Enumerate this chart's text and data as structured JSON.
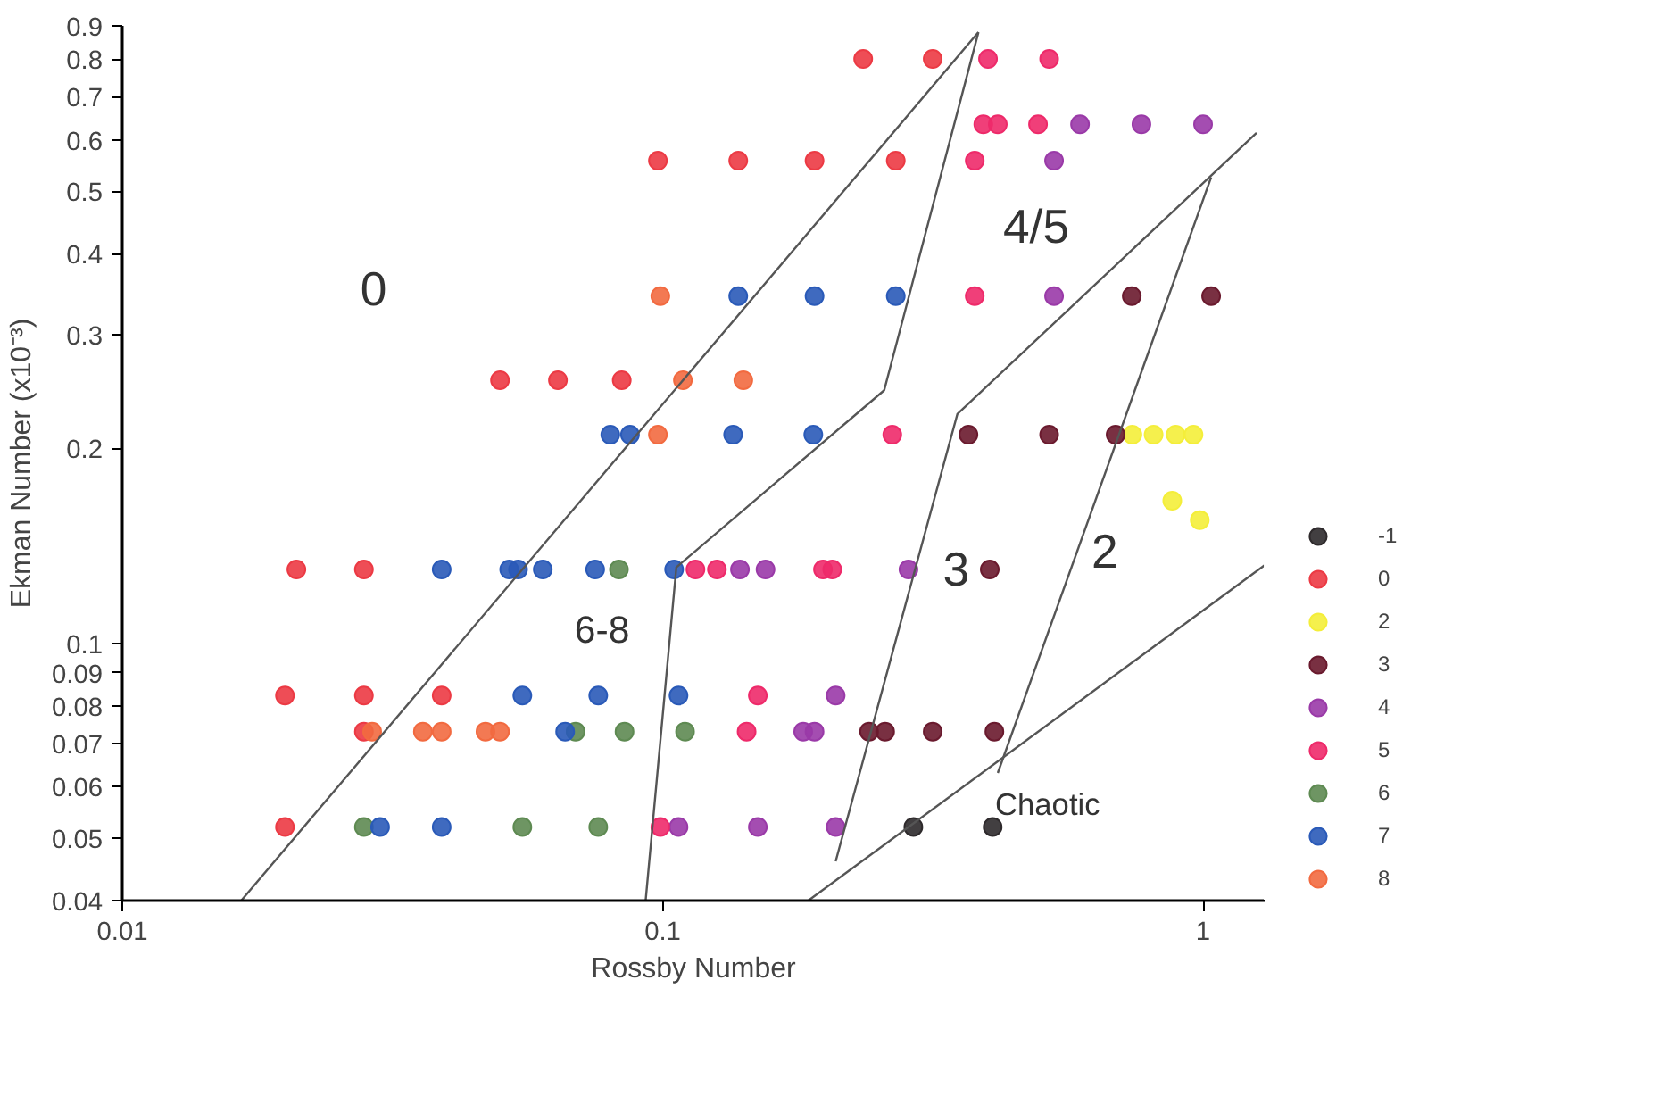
{
  "chart_data": {
    "type": "scatter",
    "xlabel": "Rossby Number",
    "ylabel": "Ekman Number (x10⁻³)",
    "log": "xy",
    "marker": "circle",
    "grid": false,
    "legend": "bottom right",
    "xlim": [
      0.01,
      1.3
    ],
    "xticks": [
      0.01,
      0.1,
      1
    ],
    "ylim": [
      0.04,
      0.9
    ],
    "yticks": [
      0.04,
      0.05,
      0.06,
      0.07,
      0.08,
      0.09,
      0.1,
      0.2,
      0.3,
      0.4,
      0.5,
      0.6,
      0.7,
      0.8,
      0.9
    ],
    "series": [
      {
        "name": "-1",
        "color": "#2e2a2c",
        "x": [
          0.291,
          0.408
        ],
        "values": [
          0.052,
          0.052
        ]
      },
      {
        "name": "0",
        "color": "#ec3a44",
        "x": [
          0.235,
          0.316,
          0.098,
          0.138,
          0.191,
          0.27,
          0.05,
          0.064,
          0.084,
          0.021,
          0.028,
          0.02,
          0.028,
          0.039,
          0.028,
          0.02
        ],
        "values": [
          0.8,
          0.8,
          0.557,
          0.557,
          0.557,
          0.557,
          0.255,
          0.255,
          0.255,
          0.13,
          0.13,
          0.083,
          0.083,
          0.083,
          0.073,
          0.052
        ]
      },
      {
        "name": "2",
        "color": "#f4ee3a",
        "x": [
          0.74,
          0.81,
          0.89,
          0.96,
          0.877,
          0.986
        ],
        "values": [
          0.21,
          0.21,
          0.21,
          0.21,
          0.166,
          0.155
        ]
      },
      {
        "name": "3",
        "color": "#6a1a2e",
        "x": [
          0.738,
          1.035,
          0.368,
          0.519,
          0.689,
          0.403,
          0.241,
          0.258,
          0.316,
          0.411
        ],
        "values": [
          0.344,
          0.344,
          0.21,
          0.21,
          0.21,
          0.13,
          0.073,
          0.073,
          0.073,
          0.073
        ]
      },
      {
        "name": "4",
        "color": "#9a3aa8",
        "x": [
          0.592,
          0.769,
          1.0,
          0.53,
          0.53,
          0.139,
          0.155,
          0.285,
          0.209,
          0.182,
          0.191,
          0.107,
          0.15,
          0.209
        ],
        "values": [
          0.634,
          0.634,
          0.634,
          0.557,
          0.344,
          0.13,
          0.13,
          0.13,
          0.083,
          0.073,
          0.073,
          0.052,
          0.052,
          0.052
        ]
      },
      {
        "name": "5",
        "color": "#ee2a6a",
        "x": [
          0.4,
          0.519,
          0.392,
          0.417,
          0.495,
          0.378,
          0.378,
          0.266,
          0.115,
          0.126,
          0.198,
          0.206,
          0.15,
          0.143,
          0.099
        ],
        "values": [
          0.8,
          0.8,
          0.634,
          0.634,
          0.634,
          0.557,
          0.344,
          0.21,
          0.13,
          0.13,
          0.13,
          0.13,
          0.083,
          0.073,
          0.052
        ]
      },
      {
        "name": "6",
        "color": "#5e8a52",
        "x": [
          0.083,
          0.069,
          0.085,
          0.11,
          0.028,
          0.055,
          0.076
        ],
        "values": [
          0.13,
          0.073,
          0.073,
          0.073,
          0.052,
          0.052,
          0.052
        ]
      },
      {
        "name": "7",
        "color": "#2a5ab8",
        "x": [
          0.138,
          0.191,
          0.27,
          0.08,
          0.087,
          0.135,
          0.19,
          0.039,
          0.052,
          0.054,
          0.06,
          0.075,
          0.105,
          0.055,
          0.076,
          0.107,
          0.066,
          0.03,
          0.039
        ],
        "values": [
          0.344,
          0.344,
          0.344,
          0.21,
          0.21,
          0.21,
          0.21,
          0.13,
          0.13,
          0.13,
          0.13,
          0.13,
          0.13,
          0.083,
          0.083,
          0.083,
          0.073,
          0.052,
          0.052
        ]
      },
      {
        "name": "8",
        "color": "#f26a40",
        "x": [
          0.099,
          0.109,
          0.141,
          0.098,
          0.029,
          0.036,
          0.039,
          0.047,
          0.05
        ],
        "values": [
          0.344,
          0.255,
          0.255,
          0.21,
          0.073,
          0.073,
          0.073,
          0.073,
          0.073
        ]
      },
      {
        "type": "line",
        "marker": "none",
        "color": "#555555",
        "x": [
          0.0166,
          0.384
        ],
        "values": [
          0.04,
          0.88
        ]
      },
      {
        "type": "line",
        "marker": "none",
        "color": "#555555",
        "x": [
          0.093,
          0.106,
          0.257,
          0.384
        ],
        "values": [
          0.04,
          0.131,
          0.246,
          0.88
        ]
      },
      {
        "type": "line",
        "marker": "none",
        "color": "#555555",
        "x": [
          0.209,
          0.351,
          1.256
        ],
        "values": [
          0.046,
          0.226,
          0.615
        ]
      },
      {
        "type": "line",
        "marker": "none",
        "color": "#555555",
        "x": [
          0.417,
          1.035
        ],
        "values": [
          0.063,
          0.525
        ]
      },
      {
        "type": "line",
        "marker": "none",
        "color": "#555555",
        "x": [
          0.186,
          1.3
        ],
        "values": [
          0.04,
          0.132
        ]
      }
    ],
    "annotations": [
      "0",
      "4/5",
      "3",
      "2",
      "6-8",
      "Chaotic"
    ]
  }
}
